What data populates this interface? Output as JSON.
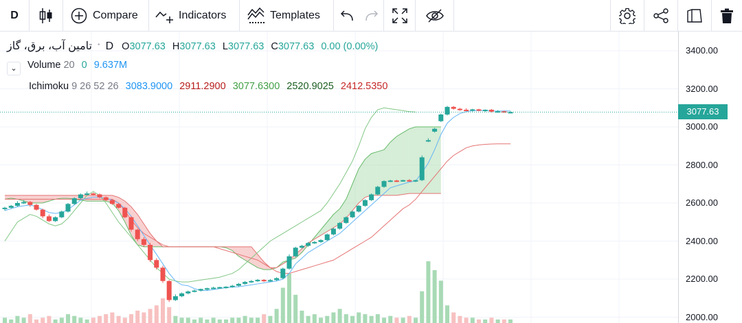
{
  "toolbar": {
    "interval": "D",
    "compare": "Compare",
    "indicators": "Indicators",
    "templates": "Templates"
  },
  "legend": {
    "symbol": "تامین آب، برق، گاز",
    "interval": "D",
    "o_label": "O",
    "o": "3077.63",
    "h_label": "H",
    "h": "3077.63",
    "l_label": "L",
    "l": "3077.63",
    "c_label": "C",
    "c": "3077.63",
    "change": "0.00 (0.00%)",
    "volume_label": "Volume",
    "volume_len": "20",
    "volume_val0": "0",
    "volume_val1": "9.637M",
    "ichimoku_label": "Ichimoku",
    "ichimoku_params": "9 26 52 26",
    "ichimoku_v1": "3083.9000",
    "ichimoku_v2": "2911.2900",
    "ichimoku_v3": "3077.6300",
    "ichimoku_v4": "2520.9025",
    "ichimoku_v5": "2412.5350"
  },
  "price_axis": {
    "labels": [
      "3400.00",
      "3200.00",
      "3000.00",
      "2800.00",
      "2600.00",
      "2400.00",
      "2200.00",
      "2000.00"
    ],
    "last_price": "3077.63"
  },
  "colors": {
    "up": "#26a69a",
    "down": "#ef5350",
    "tenkan": "#2196f3",
    "kijun": "#ef5350",
    "chikou": "#43a047",
    "cloud_up": "#a5d6a7",
    "cloud_down": "#ef9a9a",
    "vol_up": "#a8dab5",
    "vol_down": "#f7c1c0"
  },
  "chart_data": {
    "type": "candlestick",
    "ylim": [
      2000,
      3450
    ],
    "last_price": 3077.63,
    "candles": [
      [
        2570,
        2580,
        2560,
        2575
      ],
      [
        2575,
        2590,
        2570,
        2585
      ],
      [
        2585,
        2610,
        2580,
        2600
      ],
      [
        2600,
        2615,
        2595,
        2605
      ],
      [
        2605,
        2610,
        2580,
        2590
      ],
      [
        2590,
        2595,
        2560,
        2565
      ],
      [
        2565,
        2570,
        2520,
        2530
      ],
      [
        2530,
        2540,
        2500,
        2505
      ],
      [
        2505,
        2530,
        2500,
        2525
      ],
      [
        2525,
        2560,
        2520,
        2555
      ],
      [
        2555,
        2600,
        2550,
        2595
      ],
      [
        2595,
        2630,
        2590,
        2625
      ],
      [
        2625,
        2650,
        2620,
        2645
      ],
      [
        2645,
        2660,
        2640,
        2650
      ],
      [
        2650,
        2655,
        2640,
        2645
      ],
      [
        2645,
        2650,
        2625,
        2630
      ],
      [
        2630,
        2635,
        2610,
        2615
      ],
      [
        2615,
        2620,
        2590,
        2595
      ],
      [
        2595,
        2600,
        2570,
        2575
      ],
      [
        2575,
        2580,
        2520,
        2525
      ],
      [
        2525,
        2530,
        2450,
        2460
      ],
      [
        2460,
        2465,
        2400,
        2410
      ],
      [
        2410,
        2420,
        2370,
        2380
      ],
      [
        2380,
        2390,
        2290,
        2300
      ],
      [
        2300,
        2310,
        2250,
        2260
      ],
      [
        2260,
        2270,
        2180,
        2190
      ],
      [
        2190,
        2195,
        2080,
        2090
      ],
      [
        2090,
        2120,
        2085,
        2110
      ],
      [
        2110,
        2130,
        2105,
        2125
      ],
      [
        2125,
        2140,
        2120,
        2135
      ],
      [
        2135,
        2145,
        2130,
        2140
      ],
      [
        2140,
        2150,
        2135,
        2148
      ],
      [
        2148,
        2155,
        2140,
        2152
      ],
      [
        2152,
        2160,
        2148,
        2155
      ],
      [
        2155,
        2160,
        2150,
        2158
      ],
      [
        2158,
        2162,
        2150,
        2160
      ],
      [
        2160,
        2170,
        2155,
        2165
      ],
      [
        2165,
        2180,
        2160,
        2175
      ],
      [
        2175,
        2190,
        2170,
        2185
      ],
      [
        2185,
        2195,
        2180,
        2190
      ],
      [
        2190,
        2200,
        2185,
        2196
      ],
      [
        2196,
        2200,
        2185,
        2190
      ],
      [
        2190,
        2200,
        2186,
        2195
      ],
      [
        2195,
        2210,
        2190,
        2205
      ],
      [
        2205,
        2260,
        2200,
        2255
      ],
      [
        2255,
        2330,
        2250,
        2320
      ],
      [
        2320,
        2370,
        2315,
        2365
      ],
      [
        2365,
        2380,
        2360,
        2375
      ],
      [
        2375,
        2395,
        2370,
        2390
      ],
      [
        2390,
        2400,
        2385,
        2395
      ],
      [
        2395,
        2410,
        2390,
        2405
      ],
      [
        2405,
        2440,
        2400,
        2435
      ],
      [
        2435,
        2470,
        2430,
        2465
      ],
      [
        2465,
        2500,
        2460,
        2495
      ],
      [
        2495,
        2530,
        2490,
        2525
      ],
      [
        2525,
        2560,
        2520,
        2555
      ],
      [
        2555,
        2590,
        2550,
        2585
      ],
      [
        2585,
        2620,
        2580,
        2615
      ],
      [
        2615,
        2650,
        2610,
        2645
      ],
      [
        2645,
        2690,
        2640,
        2685
      ],
      [
        2685,
        2720,
        2680,
        2715
      ],
      [
        2715,
        2722,
        2710,
        2718
      ],
      [
        2718,
        2722,
        2710,
        2715
      ],
      [
        2715,
        2722,
        2712,
        2720
      ],
      [
        2720,
        2725,
        2712,
        2716
      ],
      [
        2716,
        2722,
        2710,
        2720
      ],
      [
        2720,
        2850,
        2715,
        2840
      ],
      [
        2930,
        2940,
        2920,
        2930
      ],
      [
        2975,
        2995,
        2970,
        2990
      ],
      [
        3030,
        3070,
        3025,
        3065
      ],
      [
        3065,
        3110,
        3060,
        3105
      ],
      [
        3105,
        3110,
        3090,
        3095
      ],
      [
        3095,
        3100,
        3085,
        3090
      ],
      [
        3090,
        3098,
        3083,
        3088
      ],
      [
        3088,
        3095,
        3080,
        3092
      ],
      [
        3092,
        3095,
        3082,
        3085
      ],
      [
        3085,
        3092,
        3078,
        3090
      ],
      [
        3090,
        3094,
        3076,
        3080
      ],
      [
        3080,
        3088,
        3075,
        3082
      ],
      [
        3082,
        3085,
        3075,
        3078
      ],
      [
        3078,
        3082,
        3076,
        3078
      ]
    ],
    "tenkan": [
      2560,
      2570,
      2580,
      2585,
      2590,
      2580,
      2565,
      2550,
      2545,
      2550,
      2565,
      2590,
      2615,
      2625,
      2630,
      2630,
      2625,
      2615,
      2600,
      2570,
      2530,
      2480,
      2430,
      2380,
      2330,
      2280,
      2230,
      2190,
      2170,
      2165,
      2150,
      2140,
      2140,
      2145,
      2150,
      2155,
      2158,
      2160,
      2165,
      2170,
      2175,
      2180,
      2185,
      2190,
      2200,
      2230,
      2280,
      2310,
      2340,
      2360,
      2380,
      2400,
      2420,
      2440,
      2470,
      2500,
      2530,
      2560,
      2590,
      2620,
      2650,
      2680,
      2690,
      2700,
      2710,
      2715,
      2760,
      2810,
      2880,
      2960,
      3020,
      3050,
      3070,
      3080,
      3085,
      3085,
      3086,
      3084,
      3083,
      3084,
      3084
    ],
    "kijun": [
      2620,
      2620,
      2620,
      2620,
      2620,
      2620,
      2620,
      2620,
      2620,
      2620,
      2620,
      2620,
      2620,
      2620,
      2620,
      2620,
      2620,
      2620,
      2600,
      2560,
      2510,
      2470,
      2440,
      2420,
      2400,
      2380,
      2370,
      2370,
      2370,
      2370,
      2370,
      2370,
      2370,
      2370,
      2360,
      2350,
      2340,
      2330,
      2320,
      2310,
      2300,
      2280,
      2260,
      2240,
      2230,
      2230,
      2240,
      2250,
      2260,
      2270,
      2280,
      2290,
      2300,
      2320,
      2340,
      2360,
      2380,
      2400,
      2420,
      2450,
      2480,
      2510,
      2540,
      2570,
      2590,
      2620,
      2660,
      2700,
      2740,
      2780,
      2820,
      2850,
      2870,
      2890,
      2900,
      2905,
      2908,
      2910,
      2911,
      2911,
      2911
    ],
    "chikou": [
      2400,
      2450,
      2500,
      2520,
      2540,
      2530,
      2510,
      2490,
      2480,
      2490,
      2520,
      2560,
      2600,
      2640,
      2660,
      2640,
      2600,
      2550,
      2500,
      2460,
      2420,
      2380,
      2340,
      2300,
      2260,
      2230,
      2200,
      2190,
      2185,
      2185,
      2190,
      2195,
      2200,
      2205,
      2210,
      2220,
      2230,
      2250,
      2280,
      2310,
      2340,
      2370,
      2400,
      2420,
      2440,
      2460,
      2480,
      2500,
      2520,
      2540,
      2560,
      2600,
      2650,
      2700,
      2760,
      2820,
      2900,
      2990,
      3050,
      3090,
      3100,
      3095,
      3090,
      3085,
      3080,
      3078
    ],
    "span_a": [
      2620,
      2625,
      2620,
      2610,
      2600,
      2600,
      2600,
      2610,
      2620,
      2625,
      2625,
      2620,
      2615,
      2610,
      2610,
      2610,
      2610,
      2600,
      2560,
      2500,
      2430,
      2380,
      2370,
      2370,
      2370,
      2370,
      2370,
      2370,
      2370,
      2370,
      2370,
      2370,
      2370,
      2370,
      2370,
      2365,
      2350,
      2320,
      2300,
      2280,
      2260,
      2250,
      2250,
      2260,
      2290,
      2300,
      2310,
      2340,
      2380,
      2420,
      2460,
      2500,
      2540,
      2570,
      2620,
      2700,
      2780,
      2830,
      2860,
      2870,
      2880,
      2920,
      2950,
      2970,
      2990,
      3000,
      3000,
      3000,
      3000,
      3000
    ],
    "span_b": [
      2640,
      2640,
      2640,
      2640,
      2640,
      2640,
      2640,
      2640,
      2640,
      2640,
      2640,
      2640,
      2640,
      2640,
      2640,
      2640,
      2640,
      2640,
      2630,
      2610,
      2580,
      2540,
      2490,
      2440,
      2400,
      2370,
      2370,
      2370,
      2370,
      2370,
      2370,
      2370,
      2370,
      2370,
      2370,
      2370,
      2370,
      2370,
      2370,
      2370,
      2330,
      2290,
      2260,
      2260,
      2280,
      2300,
      2330,
      2360,
      2390,
      2410,
      2430,
      2450,
      2470,
      2490,
      2520,
      2560,
      2600,
      2630,
      2640,
      2640,
      2640,
      2640,
      2640,
      2645,
      2650,
      2650,
      2650,
      2650,
      2650,
      2650
    ],
    "volume": [
      3,
      2,
      4,
      3,
      5,
      2,
      3,
      4,
      2,
      3,
      5,
      4,
      3,
      2,
      3,
      4,
      5,
      6,
      4,
      3,
      5,
      7,
      6,
      8,
      10,
      14,
      9,
      4,
      3,
      3,
      2,
      3,
      2,
      3,
      2,
      2,
      3,
      3,
      4,
      3,
      3,
      5,
      4,
      8,
      20,
      28,
      16,
      7,
      4,
      5,
      3,
      4,
      6,
      8,
      5,
      4,
      6,
      5,
      4,
      5,
      3,
      4,
      3,
      3,
      4,
      3,
      18,
      35,
      30,
      24,
      10,
      6,
      4,
      3,
      3,
      2,
      2,
      3,
      2,
      2,
      2
    ]
  }
}
